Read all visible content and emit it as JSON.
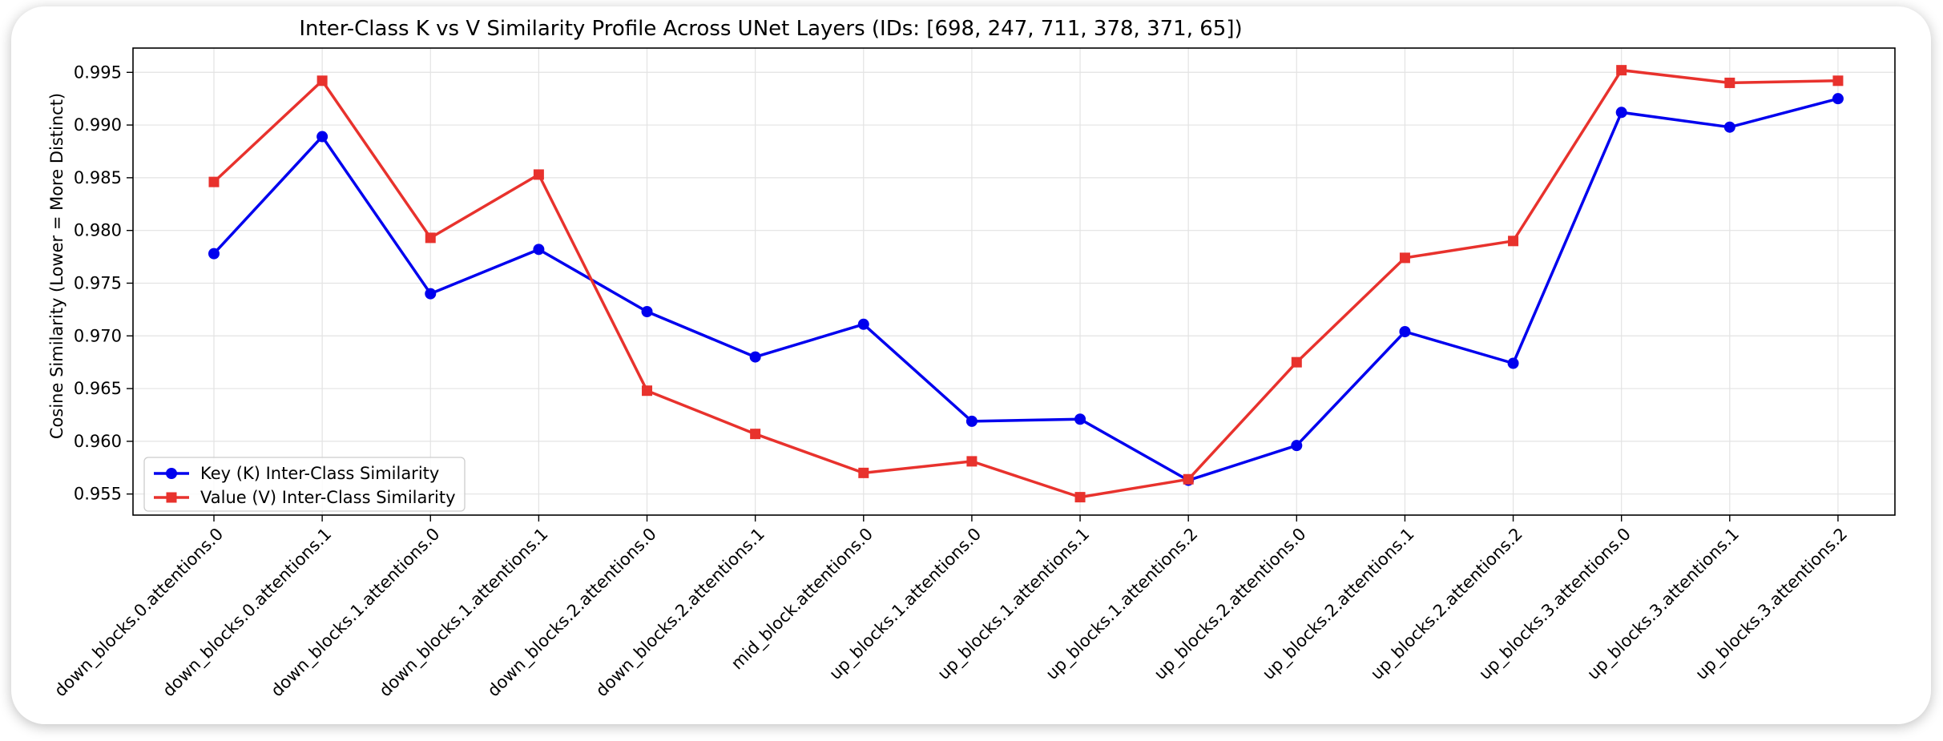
{
  "chart_data": {
    "type": "line",
    "title": "Inter-Class K vs V Similarity Profile Across UNet Layers (IDs: [698, 247, 711, 378, 371, 65])",
    "xlabel": "",
    "ylabel": "Cosine Similarity (Lower = More Distinct)",
    "ylim": [
      0.953,
      0.9973
    ],
    "yticks": [
      0.955,
      0.96,
      0.965,
      0.97,
      0.975,
      0.98,
      0.985,
      0.99,
      0.995
    ],
    "ytick_labels": [
      "0.955",
      "0.960",
      "0.965",
      "0.970",
      "0.975",
      "0.980",
      "0.985",
      "0.990",
      "0.995"
    ],
    "grid": true,
    "legend_position": "lower-left",
    "categories": [
      "down_blocks.0.attentions.0",
      "down_blocks.0.attentions.1",
      "down_blocks.1.attentions.0",
      "down_blocks.1.attentions.1",
      "down_blocks.2.attentions.0",
      "down_blocks.2.attentions.1",
      "mid_block.attentions.0",
      "up_blocks.1.attentions.0",
      "up_blocks.1.attentions.1",
      "up_blocks.1.attentions.2",
      "up_blocks.2.attentions.0",
      "up_blocks.2.attentions.1",
      "up_blocks.2.attentions.2",
      "up_blocks.3.attentions.0",
      "up_blocks.3.attentions.1",
      "up_blocks.3.attentions.2"
    ],
    "series": [
      {
        "name": "Key (K) Inter-Class Similarity",
        "color": "#0000ee",
        "marker": "circle",
        "values": [
          0.9778,
          0.9889,
          0.974,
          0.9782,
          0.9723,
          0.968,
          0.9711,
          0.9619,
          0.9621,
          0.9563,
          0.9596,
          0.9704,
          0.9674,
          0.9912,
          0.9898,
          0.9925
        ]
      },
      {
        "name": "Value (V) Inter-Class Similarity",
        "color": "#e8322d",
        "marker": "square",
        "values": [
          0.9846,
          0.9942,
          0.9793,
          0.9853,
          0.9648,
          0.9607,
          0.957,
          0.9581,
          0.9547,
          0.9564,
          0.9675,
          0.9774,
          0.979,
          0.9952,
          0.994,
          0.9942
        ]
      }
    ]
  }
}
